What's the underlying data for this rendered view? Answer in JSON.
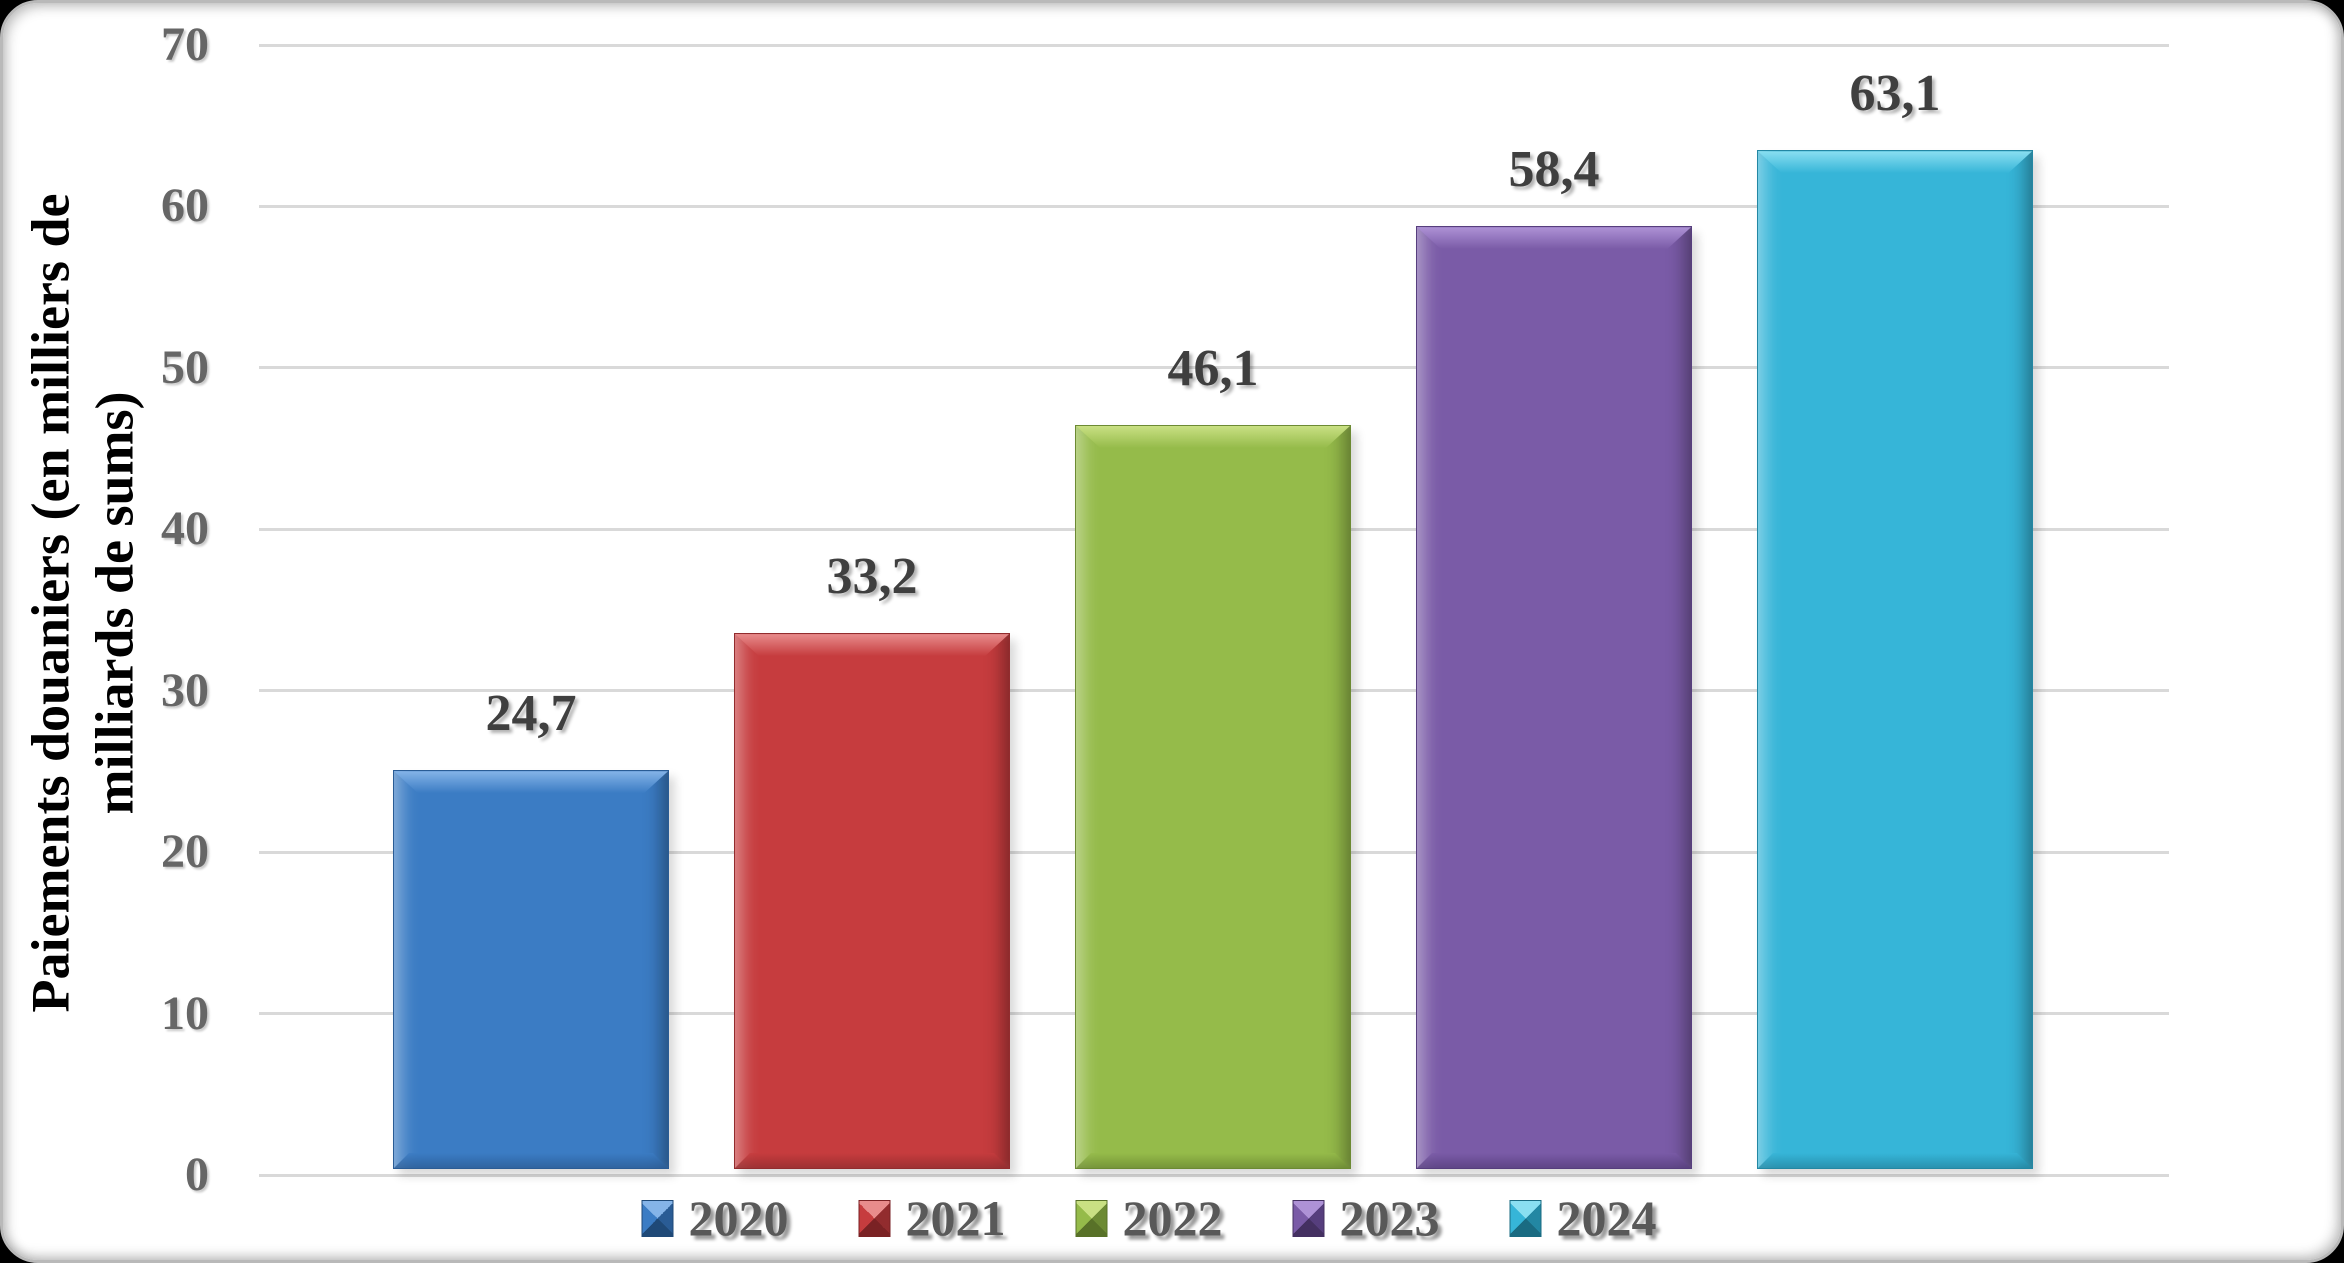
{
  "chart_data": {
    "type": "bar",
    "categories": [
      "2020",
      "2021",
      "2022",
      "2023",
      "2024"
    ],
    "values": [
      24.7,
      33.2,
      46.1,
      58.4,
      63.1
    ],
    "value_labels": [
      "24,7",
      "33,2",
      "46,1",
      "58,4",
      "63,1"
    ],
    "title": "",
    "xlabel": "",
    "ylabel": "Paiements douaniers (en milliers de milliards de sums)",
    "ylabel_lines": [
      "Paiements douaniers (en milliers de",
      "milliards de sums)"
    ],
    "yticks": [
      0,
      10,
      20,
      30,
      40,
      50,
      60,
      70
    ],
    "ylim": [
      0,
      70
    ],
    "grid": true,
    "legend_position": "bottom",
    "series": [
      {
        "name": "2020",
        "value": 24.7,
        "label": "24,7",
        "color": "#3B7CC4",
        "color_light": "#85B4E8",
        "color_dark": "#2A5C95",
        "color_deep": "#1F4977"
      },
      {
        "name": "2021",
        "value": 33.2,
        "label": "33,2",
        "color": "#C63C3E",
        "color_light": "#E88C8C",
        "color_dark": "#922C2E",
        "color_deep": "#7A2224"
      },
      {
        "name": "2022",
        "value": 46.1,
        "label": "46,1",
        "color": "#95BB4A",
        "color_light": "#C9E083",
        "color_dark": "#6C8A33",
        "color_deep": "#587128"
      },
      {
        "name": "2023",
        "value": 58.4,
        "label": "58,4",
        "color": "#7A5BA7",
        "color_light": "#AE92D6",
        "color_dark": "#563E7D",
        "color_deep": "#443061"
      },
      {
        "name": "2024",
        "value": 63.1,
        "label": "63,1",
        "color": "#36B5D8",
        "color_light": "#8ADFF1",
        "color_dark": "#2387A3",
        "color_deep": "#1A6B82"
      }
    ]
  },
  "colors": {
    "page_background": "#000000",
    "card_background": "#FFFFFF",
    "gridline": "#D9D9D9",
    "tick_text": "#666666",
    "data_label_text": "#3F3F3F",
    "legend_text": "#595959",
    "axis_title_text": "#000000"
  }
}
